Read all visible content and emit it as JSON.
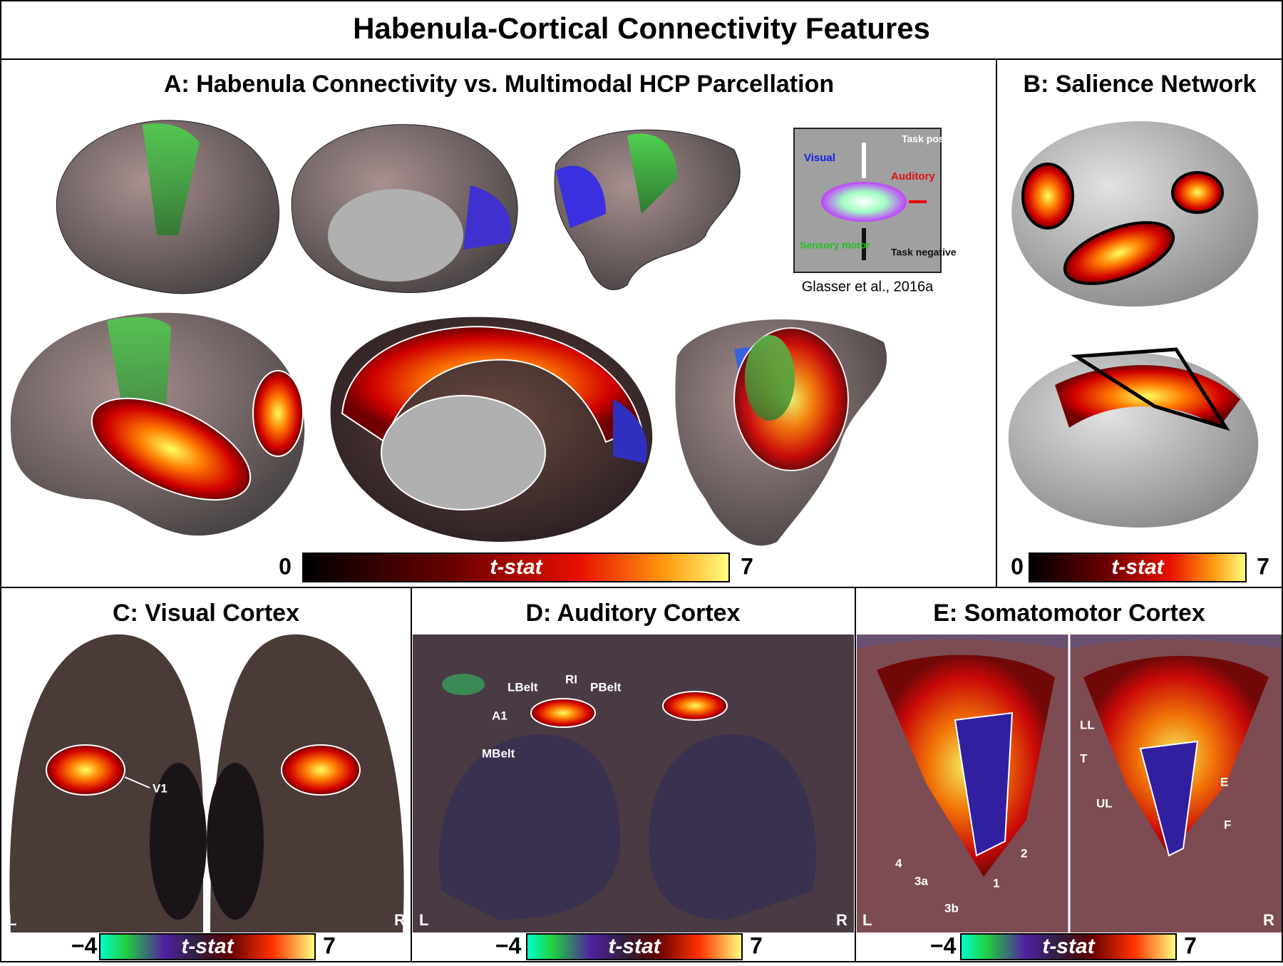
{
  "title": "Habenula-Cortical Connectivity Features",
  "panels": [
    {
      "title": "A: Habenula Connectivity vs. Multimodal HCP Parcellation",
      "legend": {
        "labels": [
          "Task positive",
          "Visual",
          "Auditory",
          "Sensory motor",
          "Task negative"
        ],
        "citation": "Glasser et al., 2016a"
      },
      "colorbar": {
        "min": "0",
        "label": "t-stat",
        "max": "7"
      }
    },
    {
      "title": "B: Salience Network",
      "colorbar": {
        "min": "0",
        "label": "t-stat",
        "max": "7"
      }
    },
    {
      "title": "C: Visual Cortex",
      "annotations": [
        "V1",
        "L",
        "R"
      ],
      "colorbar": {
        "min": "−4",
        "label": "t-stat",
        "max": "7"
      }
    },
    {
      "title": "D: Auditory Cortex",
      "annotations": [
        "LBelt",
        "RI",
        "PBelt",
        "A1",
        "MBelt",
        "L",
        "R"
      ],
      "colorbar": {
        "min": "−4",
        "label": "t-stat",
        "max": "7"
      }
    },
    {
      "title": "E: Somatomotor Cortex",
      "annotations": [
        "LL",
        "T",
        "E",
        "UL",
        "F",
        "4",
        "3a",
        "3b",
        "1",
        "2",
        "L",
        "R"
      ],
      "colorbar": {
        "min": "−4",
        "label": "t-stat",
        "max": "7"
      }
    }
  ]
}
